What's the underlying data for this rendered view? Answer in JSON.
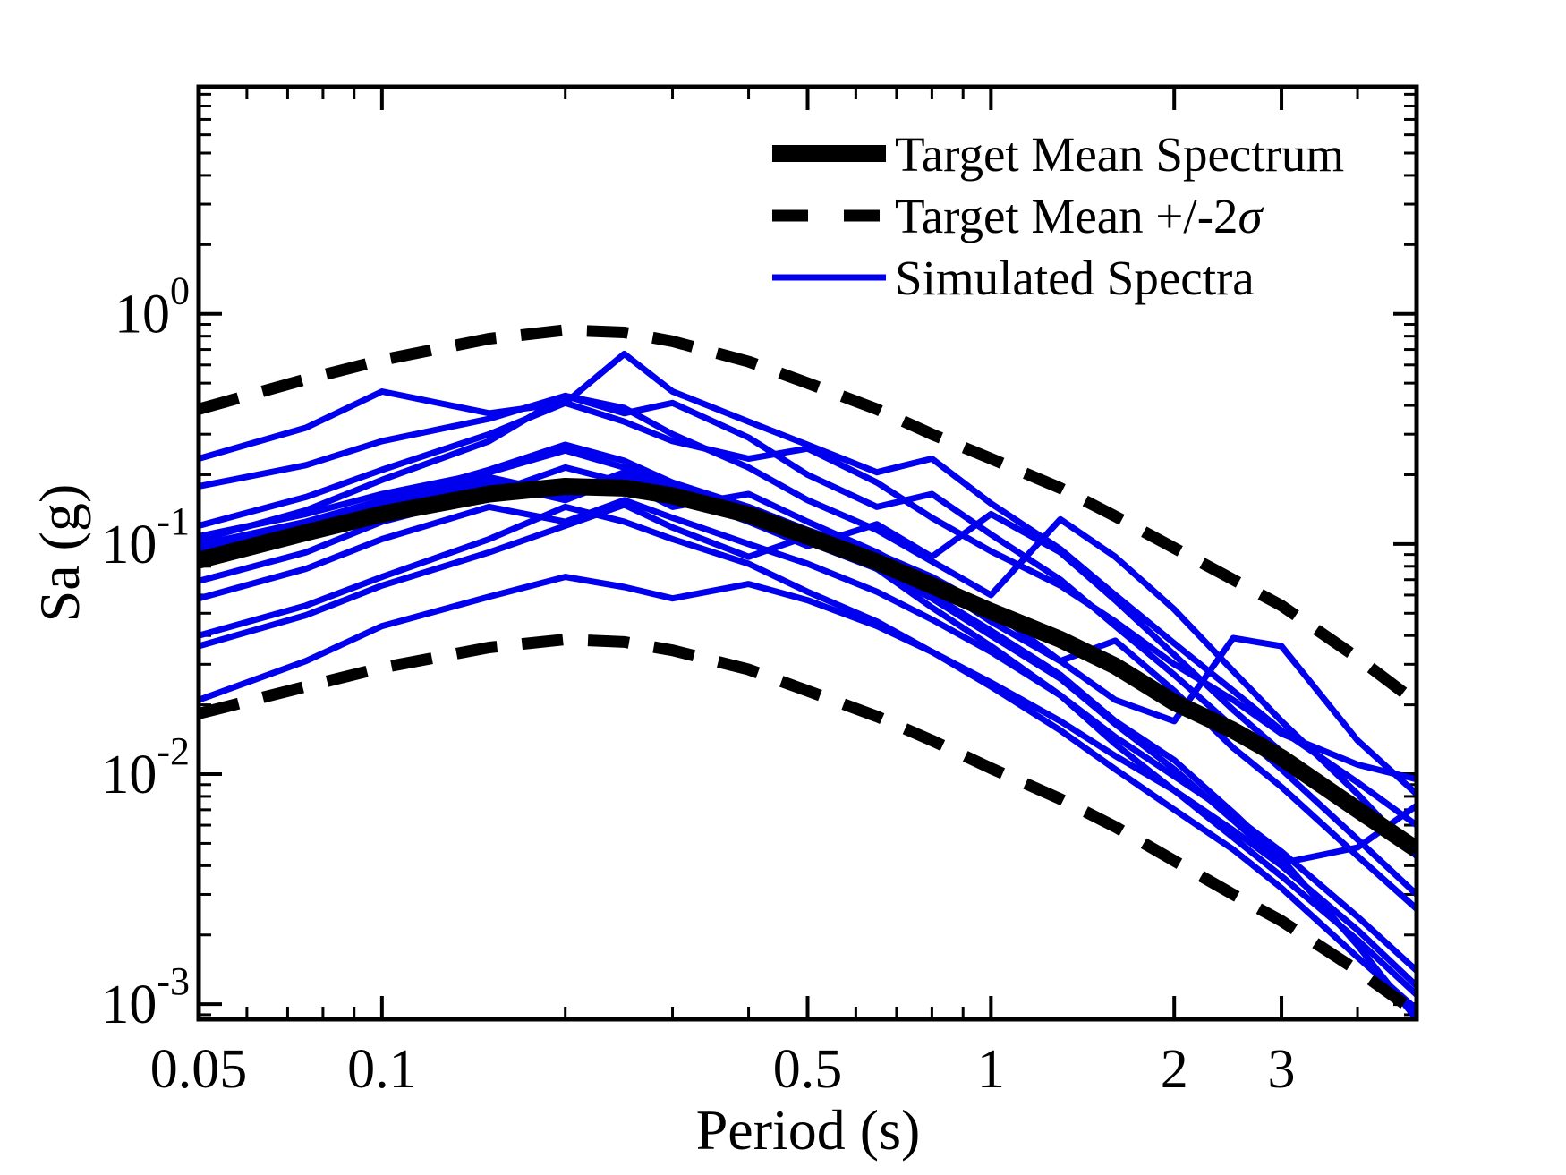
{
  "figure": {
    "xlabel": "Period (s)",
    "ylabel": "Sa (g)"
  },
  "legend": {
    "items": [
      {
        "label": "Target Mean Spectrum",
        "style": "thick-solid-black"
      },
      {
        "label_prefix": "Target Mean +/-2",
        "label_sigma": "σ",
        "style": "thick-dashed-black"
      },
      {
        "label": "Simulated Spectra",
        "style": "thin-solid-blue"
      }
    ]
  },
  "colors": {
    "target": "#000000",
    "simulated": "#0000EE",
    "background": "#ffffff"
  },
  "chart_data": {
    "type": "line",
    "title": "",
    "xlabel": "Period (s)",
    "ylabel": "Sa (g)",
    "xscale": "log",
    "yscale": "log",
    "xlim": [
      0.05,
      5.0
    ],
    "ylim": [
      0.00086,
      9.7
    ],
    "grid": false,
    "legend_position": "upper-right-inside-no-box",
    "x_ticks": {
      "labeled_values": [
        0.05,
        0.1,
        0.5,
        1,
        2,
        3
      ],
      "labels": [
        "0.05",
        "0.1",
        "0.5",
        "1",
        "2",
        "3"
      ],
      "minor_values": [
        0.06,
        0.07,
        0.08,
        0.09,
        0.2,
        0.3,
        0.4,
        0.6,
        0.7,
        0.8,
        0.9,
        4
      ]
    },
    "y_ticks": {
      "labeled_exponents": [
        0,
        -1,
        -2,
        -3
      ],
      "label_base": "10"
    },
    "periods": [
      0.05,
      0.075,
      0.1,
      0.15,
      0.2,
      0.25,
      0.3,
      0.4,
      0.5,
      0.65,
      0.8,
      1.0,
      1.3,
      1.6,
      2.0,
      2.5,
      3.0,
      4.0,
      5.0
    ],
    "series": [
      {
        "name": "Target Mean Spectrum",
        "role": "target-mean",
        "color": "#000000",
        "width": 19,
        "dash": null,
        "values": [
          0.085,
          0.112,
          0.135,
          0.165,
          0.178,
          0.175,
          0.162,
          0.134,
          0.108,
          0.0835,
          0.066,
          0.051,
          0.0385,
          0.0295,
          0.0205,
          0.0155,
          0.0118,
          0.007,
          0.0047
        ]
      },
      {
        "name": "Target Mean +2sigma",
        "role": "target-upper",
        "color": "#000000",
        "width": 13,
        "dash": "46 28",
        "values": [
          0.385,
          0.52,
          0.63,
          0.78,
          0.85,
          0.83,
          0.76,
          0.62,
          0.5,
          0.385,
          0.3,
          0.235,
          0.175,
          0.132,
          0.096,
          0.07,
          0.054,
          0.032,
          0.0205
        ]
      },
      {
        "name": "Target Mean -2sigma",
        "role": "target-lower",
        "color": "#000000",
        "width": 13,
        "dash": "46 28",
        "values": [
          0.0183,
          0.024,
          0.029,
          0.0355,
          0.0385,
          0.0375,
          0.0345,
          0.0285,
          0.023,
          0.0178,
          0.014,
          0.0106,
          0.0078,
          0.0059,
          0.0042,
          0.003,
          0.0023,
          0.0014,
          0.00092
        ]
      },
      {
        "name": "Simulated Spectrum 1",
        "role": "simulated",
        "color": "#0000EE",
        "width": 7,
        "dash": null,
        "values": [
          0.235,
          0.32,
          0.46,
          0.37,
          0.41,
          0.34,
          0.28,
          0.235,
          0.26,
          0.185,
          0.13,
          0.093,
          0.066,
          0.046,
          0.03,
          0.021,
          0.015,
          0.011,
          0.0095
        ]
      },
      {
        "name": "Simulated Spectrum 2",
        "role": "simulated",
        "color": "#0000EE",
        "width": 7,
        "dash": null,
        "values": [
          0.178,
          0.22,
          0.28,
          0.35,
          0.44,
          0.37,
          0.41,
          0.29,
          0.2,
          0.145,
          0.165,
          0.11,
          0.07,
          0.044,
          0.027,
          0.016,
          0.0105,
          0.0052,
          0.003
        ]
      },
      {
        "name": "Simulated Spectrum 3",
        "role": "simulated",
        "color": "#0000EE",
        "width": 7,
        "dash": null,
        "values": [
          0.12,
          0.16,
          0.21,
          0.3,
          0.41,
          0.67,
          0.46,
          0.34,
          0.27,
          0.205,
          0.235,
          0.15,
          0.095,
          0.06,
          0.037,
          0.023,
          0.0155,
          0.0092,
          0.006
        ]
      },
      {
        "name": "Simulated Spectrum 4",
        "role": "simulated",
        "color": "#0000EE",
        "width": 7,
        "dash": null,
        "values": [
          0.104,
          0.14,
          0.19,
          0.28,
          0.44,
          0.39,
          0.3,
          0.215,
          0.155,
          0.115,
          0.084,
          0.06,
          0.128,
          0.088,
          0.052,
          0.028,
          0.017,
          0.0082,
          0.0044
        ]
      },
      {
        "name": "Simulated Spectrum 5",
        "role": "simulated",
        "color": "#0000EE",
        "width": 7,
        "dash": null,
        "values": [
          0.099,
          0.125,
          0.155,
          0.21,
          0.27,
          0.23,
          0.185,
          0.145,
          0.115,
          0.091,
          0.072,
          0.052,
          0.031,
          0.021,
          0.017,
          0.039,
          0.036,
          0.014,
          0.0082
        ]
      },
      {
        "name": "Simulated Spectrum 6",
        "role": "simulated",
        "color": "#0000EE",
        "width": 7,
        "dash": null,
        "values": [
          0.094,
          0.115,
          0.145,
          0.185,
          0.155,
          0.195,
          0.165,
          0.125,
          0.098,
          0.122,
          0.088,
          0.135,
          0.092,
          0.057,
          0.033,
          0.019,
          0.0125,
          0.007,
          0.0046
        ]
      },
      {
        "name": "Simulated Spectrum 7",
        "role": "simulated",
        "color": "#0000EE",
        "width": 7,
        "dash": null,
        "values": [
          0.069,
          0.092,
          0.125,
          0.165,
          0.215,
          0.185,
          0.145,
          0.165,
          0.125,
          0.092,
          0.068,
          0.046,
          0.031,
          0.038,
          0.023,
          0.013,
          0.0088,
          0.0044,
          0.0026
        ]
      },
      {
        "name": "Simulated Spectrum 8",
        "role": "simulated",
        "color": "#0000EE",
        "width": 7,
        "dash": null,
        "values": [
          0.058,
          0.078,
          0.105,
          0.145,
          0.125,
          0.155,
          0.13,
          0.1,
          0.082,
          0.062,
          0.047,
          0.034,
          0.022,
          0.0145,
          0.0098,
          0.0066,
          0.0046,
          0.0024,
          0.0014
        ]
      },
      {
        "name": "Simulated Spectrum 9",
        "role": "simulated",
        "color": "#0000EE",
        "width": 7,
        "dash": null,
        "values": [
          0.04,
          0.054,
          0.072,
          0.105,
          0.145,
          0.125,
          0.105,
          0.082,
          0.062,
          0.046,
          0.034,
          0.024,
          0.0155,
          0.0105,
          0.007,
          0.0047,
          0.0032,
          0.0016,
          0.00095
        ]
      },
      {
        "name": "Simulated Spectrum 10",
        "role": "simulated",
        "color": "#0000EE",
        "width": 7,
        "dash": null,
        "values": [
          0.036,
          0.049,
          0.066,
          0.092,
          0.12,
          0.148,
          0.118,
          0.088,
          0.108,
          0.078,
          0.053,
          0.036,
          0.022,
          0.0135,
          0.0085,
          0.0053,
          0.0036,
          0.0019,
          0.0011
        ]
      },
      {
        "name": "Simulated Spectrum 11",
        "role": "simulated",
        "color": "#0000EE",
        "width": 7,
        "dash": null,
        "values": [
          0.021,
          0.031,
          0.044,
          0.059,
          0.072,
          0.065,
          0.058,
          0.067,
          0.057,
          0.044,
          0.034,
          0.025,
          0.017,
          0.012,
          0.0085,
          0.0057,
          0.004,
          0.0021,
          0.0012
        ]
      },
      {
        "name": "Simulated Spectrum 12",
        "role": "simulated",
        "color": "#0000EE",
        "width": 7,
        "dash": null,
        "values": [
          0.108,
          0.135,
          0.165,
          0.205,
          0.255,
          0.215,
          0.175,
          0.135,
          0.108,
          0.082,
          0.06,
          0.042,
          0.027,
          0.017,
          0.0115,
          0.0068,
          0.0043,
          0.0018,
          0.00086
        ]
      },
      {
        "name": "Simulated Spectrum 13",
        "role": "simulated",
        "color": "#0000EE",
        "width": 7,
        "dash": null,
        "values": [
          0.098,
          0.122,
          0.15,
          0.195,
          0.165,
          0.205,
          0.17,
          0.13,
          0.102,
          0.078,
          0.058,
          0.04,
          0.026,
          0.0165,
          0.0105,
          0.0063,
          0.0041,
          0.0048,
          0.0073
        ]
      }
    ]
  }
}
